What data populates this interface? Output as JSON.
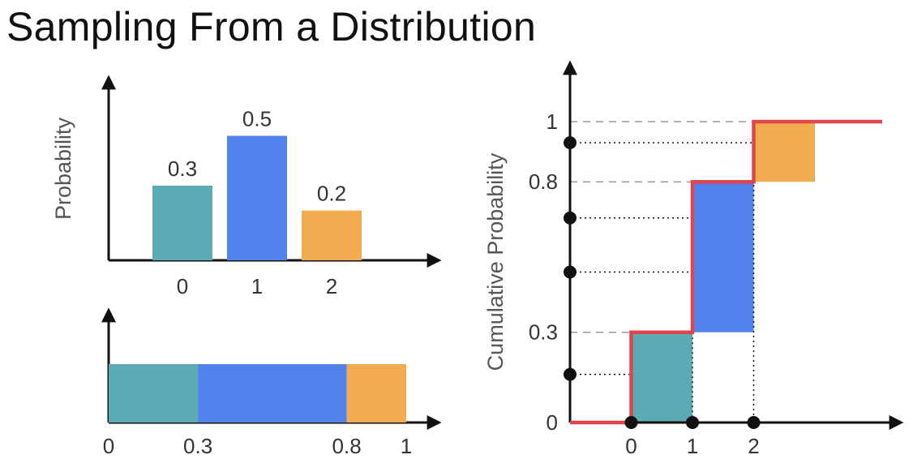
{
  "title": "Sampling From a Distribution",
  "colors": {
    "teal": "#5BAAB5",
    "blue": "#5282EC",
    "orange": "#F2AC50",
    "red": "#E0454D",
    "axis": "#111111",
    "text": "#333333"
  },
  "chart_data": [
    {
      "type": "bar",
      "name": "pmf",
      "ylabel": "Probability",
      "categories": [
        "0",
        "1",
        "2"
      ],
      "values": [
        0.3,
        0.5,
        0.2
      ],
      "value_labels": [
        "0.3",
        "0.5",
        "0.2"
      ],
      "ylim": [
        0,
        0.6
      ]
    },
    {
      "type": "bar",
      "name": "stacked-interval",
      "segments": [
        {
          "category": "0",
          "start": 0,
          "end": 0.3
        },
        {
          "category": "1",
          "start": 0.3,
          "end": 0.8
        },
        {
          "category": "2",
          "start": 0.8,
          "end": 1.0
        }
      ],
      "tick_values": [
        0,
        0.3,
        0.8,
        1
      ],
      "tick_labels": [
        "0",
        "0.3",
        "0.8",
        "1"
      ]
    },
    {
      "type": "line",
      "name": "cdf",
      "ylabel": "Cumulative Probability",
      "x_ticks": [
        0,
        1,
        2
      ],
      "x_tick_labels": [
        "0",
        "1",
        "2"
      ],
      "y_ticks": [
        0,
        0.3,
        0.8,
        1
      ],
      "y_tick_labels": [
        "0",
        "0.3",
        "0.8",
        "1"
      ],
      "cdf_steps": [
        {
          "x": 0,
          "y": 0.3
        },
        {
          "x": 1,
          "y": 0.8
        },
        {
          "x": 2,
          "y": 1.0
        }
      ],
      "uniform_samples": [
        0.16,
        0.5,
        0.68,
        0.93
      ],
      "xlim": [
        -1,
        4.1
      ],
      "ylim": [
        0,
        1.1
      ]
    }
  ]
}
